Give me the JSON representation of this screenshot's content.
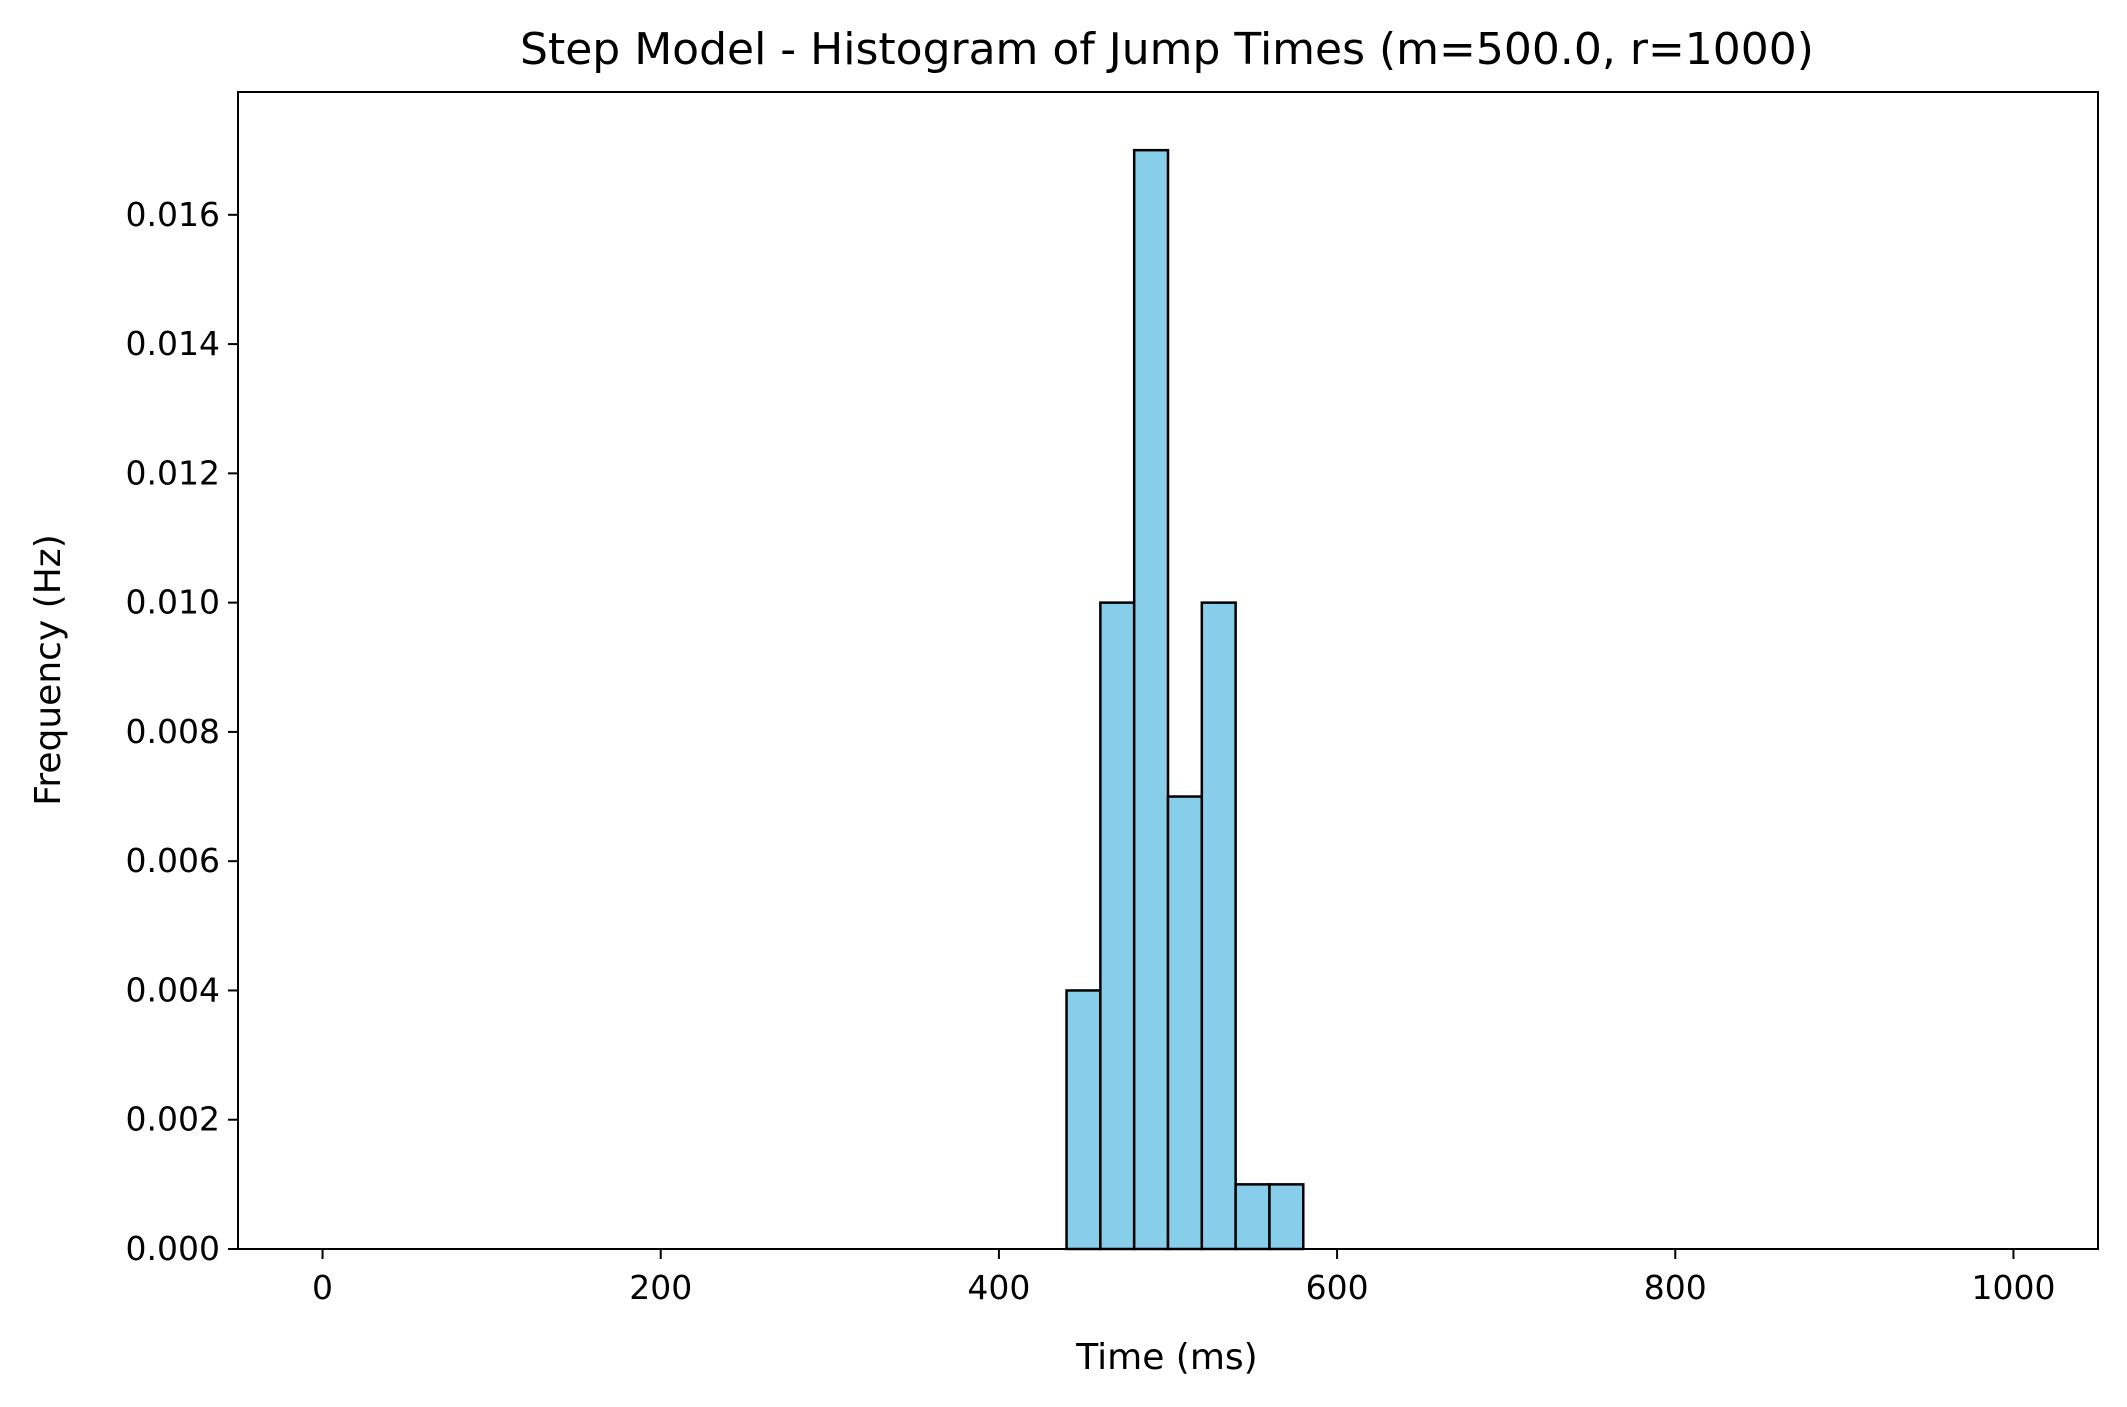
{
  "chart_data": {
    "type": "bar",
    "title": "Step Model - Histogram of Jump Times (m=500.0, r=1000)",
    "xlabel": "Time (ms)",
    "ylabel": "Frequency (Hz)",
    "xlim": [
      -50,
      1050
    ],
    "ylim": [
      0,
      0.0179
    ],
    "grid": false,
    "bar_color": "#87ceeb",
    "edge_color": "#000000",
    "bin_width": 20,
    "bins": [
      {
        "start": 0,
        "value": 0
      },
      {
        "start": 20,
        "value": 0
      },
      {
        "start": 40,
        "value": 0
      },
      {
        "start": 60,
        "value": 0
      },
      {
        "start": 80,
        "value": 0
      },
      {
        "start": 100,
        "value": 0
      },
      {
        "start": 120,
        "value": 0
      },
      {
        "start": 140,
        "value": 0
      },
      {
        "start": 160,
        "value": 0
      },
      {
        "start": 180,
        "value": 0
      },
      {
        "start": 200,
        "value": 0
      },
      {
        "start": 220,
        "value": 0
      },
      {
        "start": 240,
        "value": 0
      },
      {
        "start": 260,
        "value": 0
      },
      {
        "start": 280,
        "value": 0
      },
      {
        "start": 300,
        "value": 0
      },
      {
        "start": 320,
        "value": 0
      },
      {
        "start": 340,
        "value": 0
      },
      {
        "start": 360,
        "value": 0
      },
      {
        "start": 380,
        "value": 0
      },
      {
        "start": 400,
        "value": 0
      },
      {
        "start": 420,
        "value": 0
      },
      {
        "start": 440,
        "value": 0.004
      },
      {
        "start": 460,
        "value": 0.01
      },
      {
        "start": 480,
        "value": 0.017
      },
      {
        "start": 500,
        "value": 0.007
      },
      {
        "start": 520,
        "value": 0.01
      },
      {
        "start": 540,
        "value": 0.001
      },
      {
        "start": 560,
        "value": 0.001
      },
      {
        "start": 580,
        "value": 0
      },
      {
        "start": 600,
        "value": 0
      },
      {
        "start": 620,
        "value": 0
      },
      {
        "start": 640,
        "value": 0
      },
      {
        "start": 660,
        "value": 0
      },
      {
        "start": 680,
        "value": 0
      },
      {
        "start": 700,
        "value": 0
      },
      {
        "start": 720,
        "value": 0
      },
      {
        "start": 740,
        "value": 0
      },
      {
        "start": 760,
        "value": 0
      },
      {
        "start": 780,
        "value": 0
      },
      {
        "start": 800,
        "value": 0
      },
      {
        "start": 820,
        "value": 0
      },
      {
        "start": 840,
        "value": 0
      },
      {
        "start": 860,
        "value": 0
      },
      {
        "start": 880,
        "value": 0
      },
      {
        "start": 900,
        "value": 0
      },
      {
        "start": 920,
        "value": 0
      },
      {
        "start": 940,
        "value": 0
      },
      {
        "start": 960,
        "value": 0
      },
      {
        "start": 980,
        "value": 0
      }
    ],
    "x_ticks": [
      {
        "value": 0,
        "label": "0"
      },
      {
        "value": 200,
        "label": "200"
      },
      {
        "value": 400,
        "label": "400"
      },
      {
        "value": 600,
        "label": "600"
      },
      {
        "value": 800,
        "label": "800"
      },
      {
        "value": 1000,
        "label": "1000"
      }
    ],
    "y_ticks": [
      {
        "value": 0,
        "label": "0.000"
      },
      {
        "value": 0.002,
        "label": "0.002"
      },
      {
        "value": 0.004,
        "label": "0.004"
      },
      {
        "value": 0.006,
        "label": "0.006"
      },
      {
        "value": 0.008,
        "label": "0.008"
      },
      {
        "value": 0.01,
        "label": "0.010"
      },
      {
        "value": 0.012,
        "label": "0.012"
      },
      {
        "value": 0.014,
        "label": "0.014"
      },
      {
        "value": 0.016,
        "label": "0.016"
      }
    ]
  }
}
